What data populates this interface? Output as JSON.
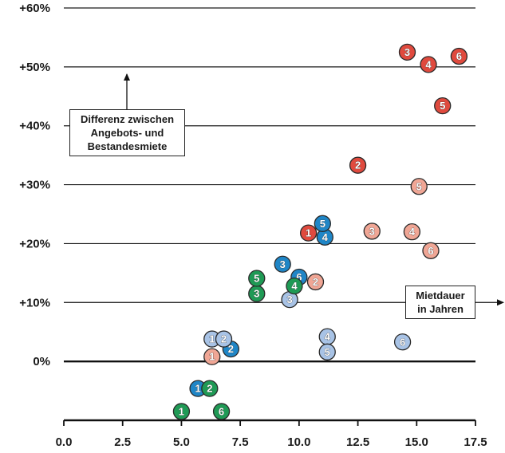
{
  "chart_data": {
    "type": "scatter",
    "title": "",
    "xlabel": "Mietdauer in Jahren",
    "ylabel": "Differenz zwischen Angebots- und Bestandesmiete",
    "xlim": [
      0,
      17.5
    ],
    "ylim": [
      -10,
      60
    ],
    "x_ticks": [
      "0.0",
      "2.5",
      "5.0",
      "7.5",
      "10.0",
      "12.5",
      "15.0",
      "17.5"
    ],
    "y_ticks": [
      "0%",
      "+10%",
      "+20%",
      "+30%",
      "+40%",
      "+50%",
      "+60%"
    ],
    "grid": "horizontal",
    "annotations": {
      "y_arrow_label": [
        "Differenz zwischen",
        "Angebots- und",
        "Bestandesmiete"
      ],
      "x_arrow_label": [
        "Mietdauer",
        "in Jahren"
      ]
    },
    "colors": {
      "red": "#e04a3e",
      "salmon": "#f0a695",
      "blue": "#1f86c7",
      "lightblue": "#a8c3e6",
      "green": "#1f9a55"
    },
    "series": [
      {
        "color": "red",
        "points": [
          {
            "x": 10.4,
            "y": 21.8,
            "label": "1"
          },
          {
            "x": 12.5,
            "y": 33.3,
            "label": "2"
          },
          {
            "x": 14.6,
            "y": 52.5,
            "label": "3"
          },
          {
            "x": 15.5,
            "y": 50.4,
            "label": "4"
          },
          {
            "x": 16.1,
            "y": 43.4,
            "label": "5"
          },
          {
            "x": 16.8,
            "y": 51.8,
            "label": "6"
          }
        ]
      },
      {
        "color": "salmon",
        "points": [
          {
            "x": 6.3,
            "y": 0.8,
            "label": "1"
          },
          {
            "x": 10.7,
            "y": 13.5,
            "label": "2"
          },
          {
            "x": 13.1,
            "y": 22.1,
            "label": "3"
          },
          {
            "x": 14.8,
            "y": 22.0,
            "label": "4"
          },
          {
            "x": 15.1,
            "y": 29.7,
            "label": "5"
          },
          {
            "x": 15.6,
            "y": 18.8,
            "label": "6"
          }
        ]
      },
      {
        "color": "blue",
        "points": [
          {
            "x": 5.7,
            "y": -4.6,
            "label": "1"
          },
          {
            "x": 7.1,
            "y": 2.1,
            "label": "2"
          },
          {
            "x": 9.3,
            "y": 16.5,
            "label": "3"
          },
          {
            "x": 11.1,
            "y": 21.1,
            "label": "4"
          },
          {
            "x": 11.0,
            "y": 23.4,
            "label": "5"
          },
          {
            "x": 10.0,
            "y": 14.3,
            "label": "6"
          }
        ]
      },
      {
        "color": "lightblue",
        "points": [
          {
            "x": 6.3,
            "y": 3.8,
            "label": "1"
          },
          {
            "x": 6.8,
            "y": 3.8,
            "label": "2"
          },
          {
            "x": 9.6,
            "y": 10.5,
            "label": "3"
          },
          {
            "x": 11.2,
            "y": 4.2,
            "label": "4"
          },
          {
            "x": 11.2,
            "y": 1.6,
            "label": "5"
          },
          {
            "x": 14.4,
            "y": 3.3,
            "label": "6"
          }
        ]
      },
      {
        "color": "green",
        "points": [
          {
            "x": 5.0,
            "y": -8.5,
            "label": "1"
          },
          {
            "x": 6.2,
            "y": -4.6,
            "label": "2"
          },
          {
            "x": 8.2,
            "y": 11.5,
            "label": "3"
          },
          {
            "x": 9.8,
            "y": 12.8,
            "label": "4"
          },
          {
            "x": 8.2,
            "y": 14.1,
            "label": "5"
          },
          {
            "x": 6.7,
            "y": -8.5,
            "label": "6"
          }
        ]
      }
    ]
  }
}
